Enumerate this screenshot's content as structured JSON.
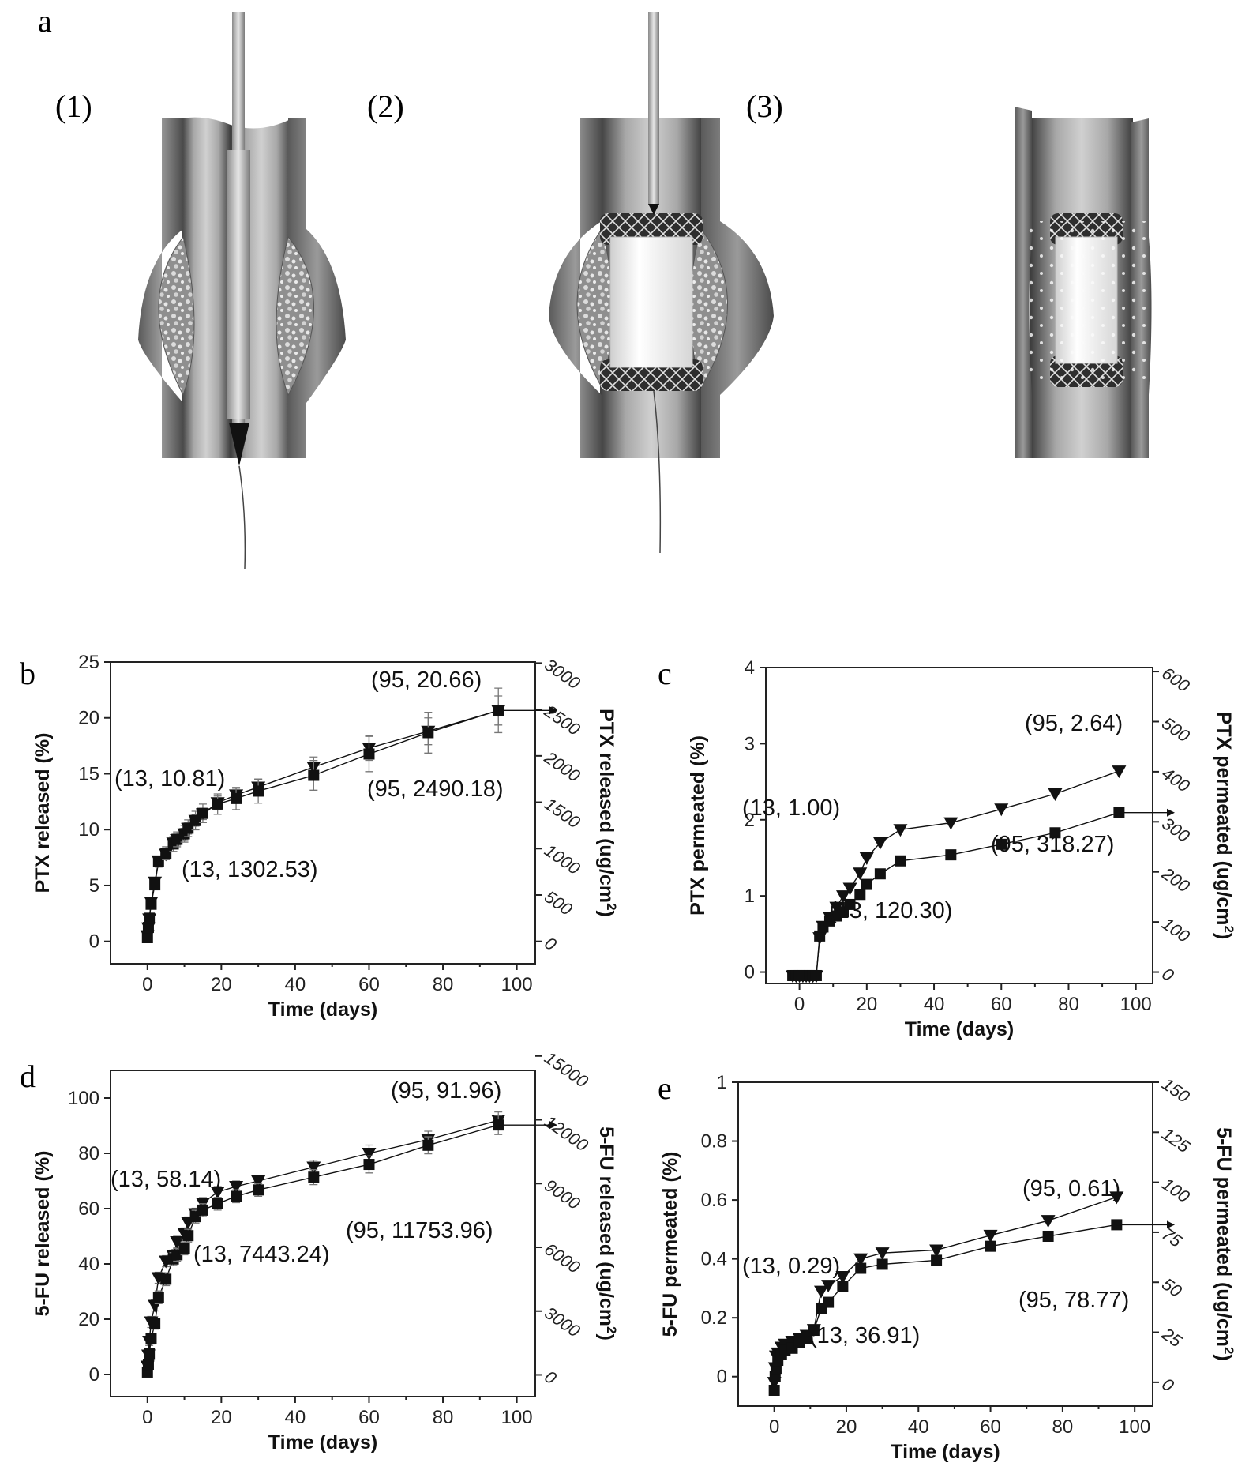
{
  "panels": {
    "a": {
      "letter": "a",
      "steps": [
        "(1)",
        "(2)",
        "(3)"
      ]
    }
  },
  "chart_data": [
    {
      "id": "b",
      "letter": "b",
      "type": "line",
      "xlabel": "Time (days)",
      "ylabel": "PTX released (%)",
      "y2label": "PTX released (ug/cm2)",
      "xlim": [
        -10,
        105
      ],
      "ylim": [
        -2,
        25
      ],
      "y2lim": [
        -241,
        3012
      ],
      "xticks": [
        0,
        20,
        40,
        60,
        80,
        100
      ],
      "yticks": [
        0,
        5,
        10,
        15,
        20,
        25
      ],
      "y2ticks": [
        0,
        500,
        1000,
        1500,
        2000,
        2500,
        3000
      ],
      "series": [
        {
          "marker": "triangle-down",
          "axis": "left",
          "x": [
            0,
            0.25,
            0.5,
            1,
            2,
            3,
            5,
            7,
            8,
            10,
            11,
            13,
            15,
            19,
            24,
            30,
            45,
            60,
            76,
            95
          ],
          "y": [
            0.5,
            1.2,
            2,
            3.5,
            5.3,
            7.2,
            7.8,
            8.8,
            9.1,
            9.6,
            10.1,
            10.81,
            11.4,
            12.4,
            13.1,
            13.8,
            15.6,
            17.3,
            18.8,
            20.66
          ],
          "err": [
            0.2,
            0.3,
            0.3,
            0.3,
            0.4,
            0.4,
            0.4,
            0.5,
            0.5,
            0.5,
            0.5,
            0.5,
            0.5,
            0.6,
            0.6,
            0.7,
            0.9,
            1.1,
            1.2,
            1.3
          ]
        },
        {
          "marker": "square",
          "axis": "right",
          "x": [
            0,
            0.25,
            0.5,
            1,
            2,
            3,
            5,
            7,
            8,
            10,
            11,
            13,
            15,
            19,
            24,
            30,
            45,
            60,
            76,
            95
          ],
          "y": [
            40,
            150,
            250,
            400,
            610,
            860,
            950,
            1050,
            1100,
            1160,
            1220,
            1302.53,
            1380,
            1480,
            1540,
            1620,
            1790,
            2020,
            2250,
            2490.18
          ],
          "err": [
            20,
            30,
            30,
            40,
            50,
            60,
            70,
            80,
            80,
            90,
            90,
            100,
            100,
            110,
            120,
            130,
            160,
            190,
            220,
            240
          ]
        }
      ],
      "annotations": [
        {
          "text": "(95, 20.66)"
        },
        {
          "text": "(13, 10.81)"
        },
        {
          "text": "(95, 2490.18)"
        },
        {
          "text": "(13, 1302.53)"
        }
      ]
    },
    {
      "id": "c",
      "letter": "c",
      "type": "line",
      "xlabel": "Time (days)",
      "ylabel": "PTX permeated (%)",
      "y2label": "PTX permeated (ug/cm2)",
      "xlim": [
        -10,
        105
      ],
      "ylim": [
        -0.15,
        4
      ],
      "y2lim": [
        -22.8,
        608
      ],
      "xticks": [
        0,
        20,
        40,
        60,
        80,
        100
      ],
      "yticks": [
        0,
        1,
        2,
        3,
        4
      ],
      "y2ticks": [
        0,
        100,
        200,
        300,
        400,
        500,
        600
      ],
      "series": [
        {
          "marker": "triangle-down",
          "axis": "left",
          "x": [
            -2,
            -1,
            0,
            1,
            2,
            3,
            4,
            5,
            6,
            7,
            9,
            11,
            13,
            15,
            18,
            20,
            24,
            30,
            45,
            60,
            76,
            95
          ],
          "y": [
            -0.05,
            -0.05,
            -0.05,
            -0.05,
            -0.05,
            -0.05,
            -0.05,
            -0.05,
            0.45,
            0.6,
            0.72,
            0.85,
            1.0,
            1.1,
            1.3,
            1.5,
            1.7,
            1.87,
            1.96,
            2.14,
            2.34,
            2.64
          ]
        },
        {
          "marker": "square",
          "axis": "right",
          "x": [
            -2,
            -1,
            0,
            1,
            2,
            3,
            4,
            5,
            6,
            7,
            9,
            11,
            13,
            15,
            18,
            20,
            24,
            30,
            45,
            60,
            76,
            95
          ],
          "y": [
            -7,
            -7,
            -7,
            -7,
            -7,
            -7,
            -7,
            -7,
            72,
            90,
            102,
            112,
            120.3,
            135,
            155,
            175,
            196,
            222,
            234,
            255,
            278,
            318.27
          ]
        }
      ],
      "annotations": [
        {
          "text": "(95, 2.64)"
        },
        {
          "text": "(13, 1.00)"
        },
        {
          "text": "(95, 318.27)"
        },
        {
          "text": "(13, 120.30)"
        }
      ]
    },
    {
      "id": "d",
      "letter": "d",
      "type": "line",
      "xlabel": "Time (days)",
      "ylabel": "5-FU released (%)",
      "y2label": "5-FU released (ug/cm2)",
      "xlim": [
        -10,
        105
      ],
      "ylim": [
        -8,
        110
      ],
      "y2lim": [
        -1023,
        14323
      ],
      "xticks": [
        0,
        20,
        40,
        60,
        80,
        100
      ],
      "yticks": [
        0,
        20,
        40,
        60,
        80,
        100
      ],
      "y2ticks": [
        0,
        3000,
        6000,
        9000,
        12000,
        15000
      ],
      "series": [
        {
          "marker": "triangle-down",
          "axis": "left",
          "x": [
            0,
            0.25,
            0.5,
            1,
            2,
            3,
            5,
            7,
            8,
            10,
            11,
            13,
            15,
            19,
            24,
            30,
            45,
            60,
            76,
            95
          ],
          "y": [
            3,
            7,
            12,
            19,
            25,
            35,
            41,
            43,
            48,
            51,
            55,
            58.14,
            62,
            66,
            68,
            70,
            75,
            80,
            85,
            91.96
          ],
          "err": [
            1,
            1.5,
            1.5,
            2,
            2,
            2,
            2,
            2,
            2,
            2,
            2,
            2,
            2,
            2,
            2,
            2,
            2.5,
            3,
            3,
            3
          ]
        },
        {
          "marker": "square",
          "axis": "right",
          "x": [
            0,
            0.25,
            0.5,
            1,
            2,
            3,
            5,
            7,
            8,
            10,
            11,
            13,
            15,
            19,
            24,
            30,
            45,
            60,
            76,
            95
          ],
          "y": [
            130,
            500,
            1000,
            1700,
            2400,
            3650,
            4500,
            5450,
            5650,
            5950,
            6550,
            7443.24,
            7750,
            8050,
            8400,
            8700,
            9300,
            9900,
            10800,
            11753.96
          ],
          "err": [
            100,
            150,
            200,
            250,
            250,
            300,
            300,
            300,
            300,
            300,
            300,
            300,
            300,
            300,
            300,
            300,
            350,
            400,
            400,
            450
          ]
        }
      ],
      "annotations": [
        {
          "text": "(95, 91.96)"
        },
        {
          "text": "(13, 58.14)"
        },
        {
          "text": "(95, 11753.96)"
        },
        {
          "text": "(13, 7443.24)"
        }
      ]
    },
    {
      "id": "e",
      "letter": "e",
      "type": "line",
      "xlabel": "Time (days)",
      "ylabel": "5-FU permeated (%)",
      "y2label": "5-FU permeated (ug/cm2)",
      "xlim": [
        -10,
        105
      ],
      "ylim": [
        -0.1,
        1.0
      ],
      "y2lim": [
        -11.9,
        150
      ],
      "xticks": [
        0,
        20,
        40,
        60,
        80,
        100
      ],
      "yticks": [
        0.0,
        0.2,
        0.4,
        0.6,
        0.8,
        1.0
      ],
      "y2ticks": [
        0,
        25,
        50,
        75,
        100,
        125,
        150
      ],
      "series": [
        {
          "marker": "triangle-down",
          "axis": "left",
          "x": [
            0,
            0.25,
            0.5,
            1,
            2,
            3,
            5,
            7,
            9,
            11,
            13,
            15,
            19,
            24,
            30,
            45,
            60,
            76,
            95
          ],
          "y": [
            -0.02,
            0.03,
            0.07,
            0.08,
            0.1,
            0.11,
            0.12,
            0.13,
            0.14,
            0.16,
            0.29,
            0.31,
            0.34,
            0.4,
            0.42,
            0.43,
            0.48,
            0.53,
            0.61
          ]
        },
        {
          "marker": "square",
          "axis": "right",
          "x": [
            0,
            0.25,
            0.5,
            1,
            2,
            3,
            5,
            7,
            9,
            11,
            13,
            15,
            19,
            24,
            30,
            45,
            60,
            76,
            95
          ],
          "y": [
            -4,
            3,
            7,
            11,
            14,
            16,
            17,
            20,
            22,
            26,
            36.91,
            40,
            48,
            57,
            59,
            61,
            68,
            73,
            78.77
          ]
        }
      ],
      "annotations": [
        {
          "text": "(95, 0.61)"
        },
        {
          "text": "(13, 0.29)"
        },
        {
          "text": "(95, 78.77)"
        },
        {
          "text": "(13, 36.91)"
        }
      ]
    }
  ]
}
